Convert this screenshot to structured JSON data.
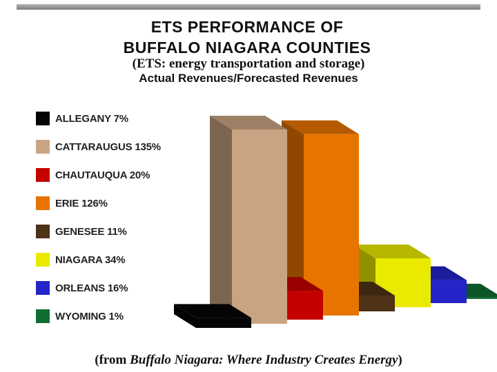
{
  "chart_data": {
    "type": "bar",
    "title": "ETS PERFORMANCE OF BUFFALO NIAGARA COUNTIES",
    "title_line1": "ETS PERFORMANCE OF",
    "title_line2": "BUFFALO NIAGARA COUNTIES",
    "subtitle1": "(ETS: energy transportation and storage)",
    "subtitle2": "Actual Revenues/Forecasted Revenues",
    "categories": [
      "ALLEGANY",
      "CATTARAUGUS",
      "CHAUTAUQUA",
      "ERIE",
      "GENESEE",
      "NIAGARA",
      "ORLEANS",
      "WYOMING"
    ],
    "values": [
      7,
      135,
      20,
      126,
      11,
      34,
      16,
      1
    ],
    "unit": "%",
    "legend_labels": [
      "ALLEGANY 7%",
      "CATTARAUGUS 135%",
      "CHAUTAUQUA 20%",
      "ERIE 126%",
      "GENESEE 11%",
      "NIAGARA 34%",
      "ORLEANS 16%",
      "WYOMING 1%"
    ],
    "colors": [
      "#050505",
      "#c9a482",
      "#c40000",
      "#e87400",
      "#4e3216",
      "#eaea00",
      "#2424c8",
      "#0e6e34"
    ],
    "legend_position": "left",
    "style": "3d-bar",
    "grid": false
  },
  "footer": {
    "prefix": "(from ",
    "source": "Buffalo Niagara: Where Industry Creates Energy",
    "suffix": ")"
  }
}
